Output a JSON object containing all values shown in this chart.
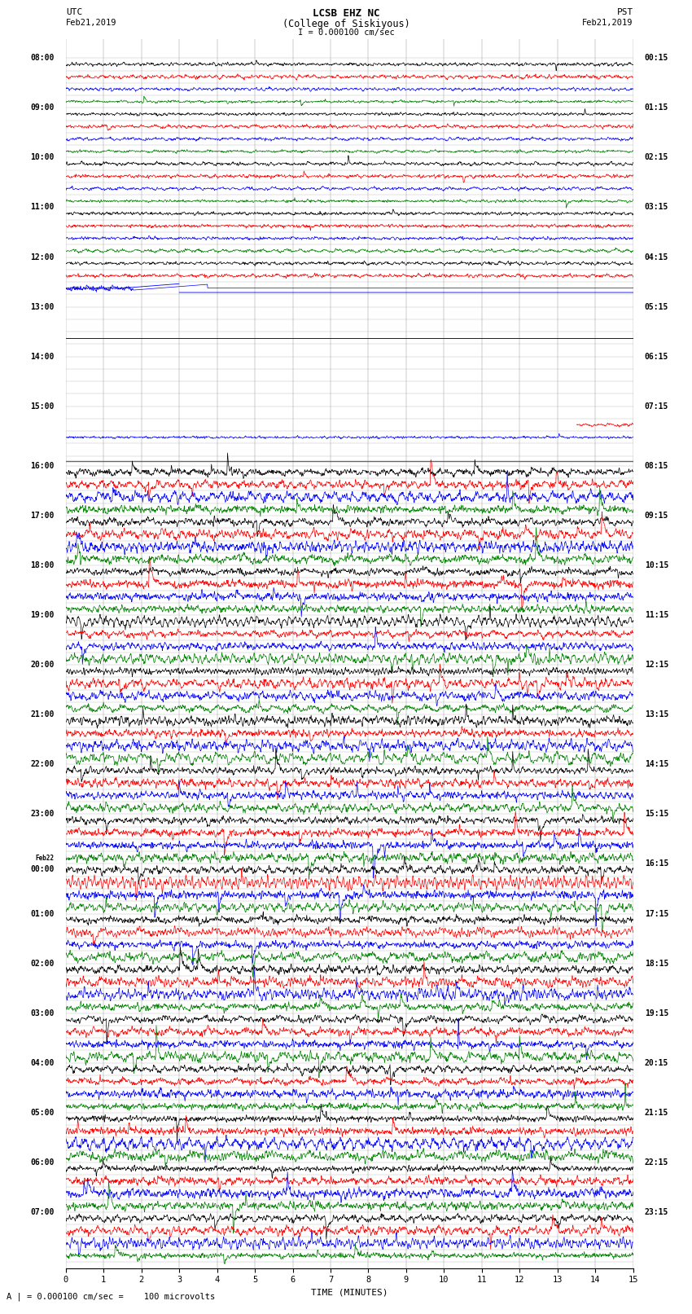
{
  "title_line1": "LCSB EHZ NC",
  "title_line2": "(College of Siskiyous)",
  "title_line3": "I = 0.000100 cm/sec",
  "utc_label": "UTC\nFeb21,2019",
  "pst_label": "PST\nFeb21,2019",
  "bottom_label": "A | = 0.000100 cm/sec =    100 microvolts",
  "xlabel": "TIME (MINUTES)",
  "fig_width": 8.5,
  "fig_height": 16.13,
  "background_color": "#ffffff",
  "noise_seed": 42
}
